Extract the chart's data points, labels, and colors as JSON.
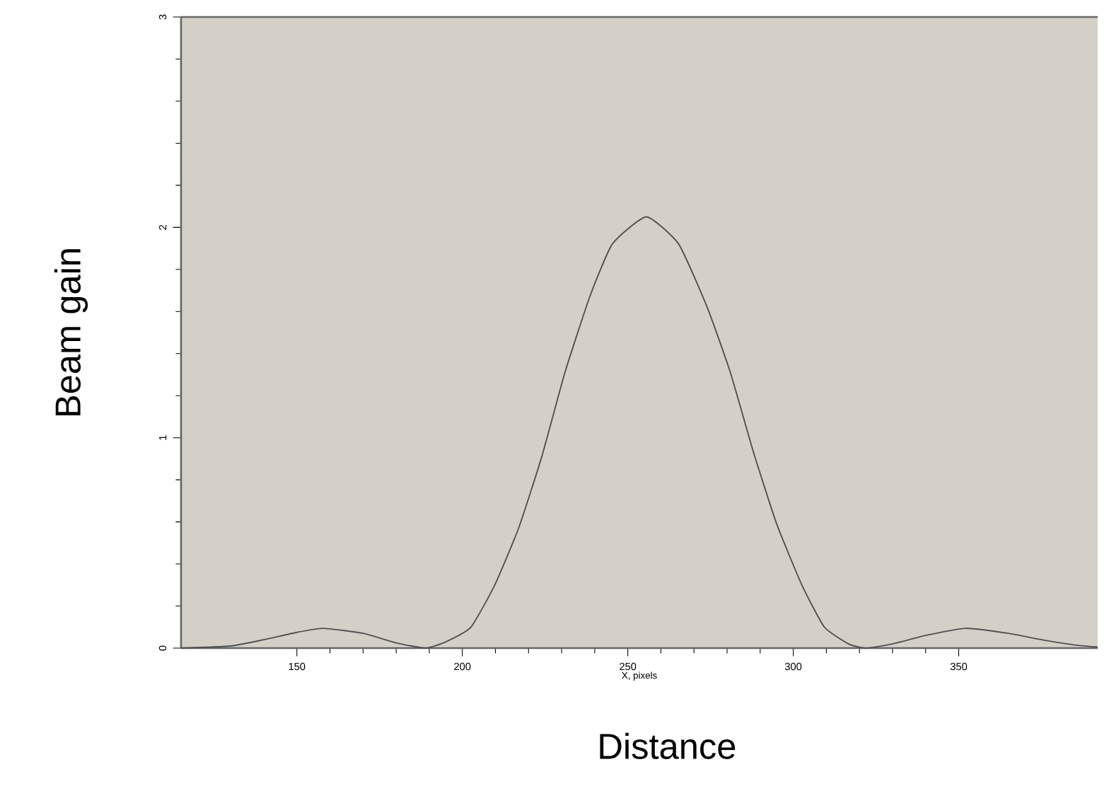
{
  "chart_data": {
    "type": "line",
    "xlabel": "X, pixels",
    "ylabel": "Beam gain",
    "annotations": [
      "Distance"
    ],
    "x": [
      115,
      130,
      140,
      150,
      158,
      170,
      180,
      189,
      195,
      202.6,
      209.8,
      217,
      224,
      231,
      238.5,
      245.3,
      255.6,
      265.4,
      274,
      281,
      288,
      295,
      302.6,
      309.4,
      316.7,
      322,
      330,
      340,
      352,
      365,
      375,
      385,
      392
    ],
    "series": [
      {
        "color": "#505050",
        "values": [
          0.0,
          0.01,
          0.04,
          0.075,
          0.094,
          0.07,
          0.025,
          0.0,
          0.03,
          0.1,
          0.3,
          0.57,
          0.91,
          1.31,
          1.67,
          1.92,
          2.05,
          1.92,
          1.62,
          1.31,
          0.93,
          0.59,
          0.3,
          0.1,
          0.02,
          0.0,
          0.02,
          0.06,
          0.094,
          0.07,
          0.04,
          0.015,
          0.005
        ]
      }
    ],
    "xlim": [
      115,
      392
    ],
    "ylim": [
      0,
      3
    ],
    "xticks": [
      150,
      200,
      250,
      300,
      350
    ],
    "yticks": [
      0,
      1,
      2,
      3
    ],
    "marker": "none",
    "line_style": "solid"
  }
}
